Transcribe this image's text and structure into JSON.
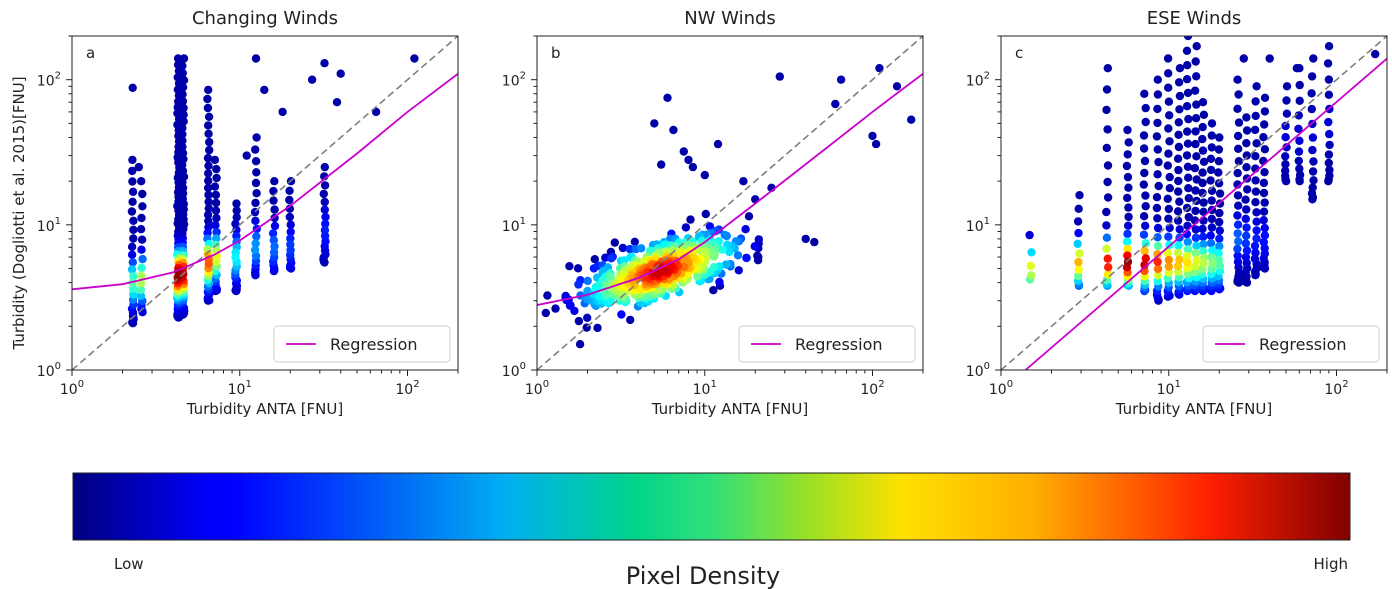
{
  "chart_data": [
    {
      "type": "scatter",
      "panel_letter": "a",
      "title": "Changing Winds",
      "xlabel": "Turbidity ANTA [FNU]",
      "ylabel": "Turbidity (Dogliotti et al. 2015)[FNU]",
      "x_scale": "log",
      "y_scale": "log",
      "xlim": [
        1,
        200
      ],
      "ylim": [
        1,
        200
      ],
      "x_ticks": [
        {
          "base": "10",
          "exp": "0"
        },
        {
          "base": "10",
          "exp": "1"
        },
        {
          "base": "10",
          "exp": "2"
        }
      ],
      "y_ticks": [
        {
          "base": "10",
          "exp": "0"
        },
        {
          "base": "10",
          "exp": "1"
        },
        {
          "base": "10",
          "exp": "2"
        }
      ],
      "legend": {
        "entries": [
          "Regression"
        ],
        "position": "lower-right"
      },
      "identity_line": {
        "style": "dashed",
        "color": "#7f7f7f"
      },
      "regression": {
        "color": "#cc00cc",
        "points": [
          [
            1,
            3.6
          ],
          [
            2,
            3.9
          ],
          [
            4,
            4.7
          ],
          [
            7,
            6.2
          ],
          [
            10,
            7.8
          ],
          [
            20,
            13.5
          ],
          [
            50,
            31
          ],
          [
            100,
            60
          ],
          [
            200,
            110
          ]
        ]
      },
      "clusters": [
        {
          "x": 2.3,
          "y_min": 2.1,
          "y_max": 28,
          "peak": 4.0,
          "density": 0.45,
          "n": 26
        },
        {
          "x": 2.6,
          "y_min": 2.5,
          "y_max": 20,
          "peak": 4.2,
          "density": 0.55,
          "n": 18
        },
        {
          "x": 4.3,
          "y_min": 2.3,
          "y_max": 140,
          "peak": 4.5,
          "density": 1.0,
          "n": 70
        },
        {
          "x": 4.6,
          "y_min": 2.4,
          "y_max": 140,
          "peak": 4.6,
          "density": 0.95,
          "n": 60
        },
        {
          "x": 6.5,
          "y_min": 3.0,
          "y_max": 85,
          "peak": 5.5,
          "density": 0.8,
          "n": 40
        },
        {
          "x": 7.2,
          "y_min": 3.5,
          "y_max": 28,
          "peak": 6.0,
          "density": 0.6,
          "n": 25
        },
        {
          "x": 9.5,
          "y_min": 3.5,
          "y_max": 14,
          "peak": 6.0,
          "density": 0.35,
          "n": 22
        },
        {
          "x": 12.5,
          "y_min": 4.5,
          "y_max": 40,
          "peak": 7.0,
          "density": 0.25,
          "n": 20
        },
        {
          "x": 16,
          "y_min": 4.8,
          "y_max": 20,
          "peak": 7.0,
          "density": 0.2,
          "n": 16
        },
        {
          "x": 20,
          "y_min": 5.0,
          "y_max": 20,
          "peak": 7.0,
          "density": 0.15,
          "n": 16
        },
        {
          "x": 32,
          "y_min": 5.5,
          "y_max": 25,
          "peak": 9.0,
          "density": 0.12,
          "n": 18
        }
      ],
      "outliers": [
        [
          2.3,
          88
        ],
        [
          2.5,
          25
        ],
        [
          12.5,
          140
        ],
        [
          14,
          85
        ],
        [
          27,
          100
        ],
        [
          32,
          130
        ],
        [
          38,
          70
        ],
        [
          40,
          110
        ],
        [
          65,
          60
        ],
        [
          110,
          140
        ],
        [
          11,
          30
        ],
        [
          18,
          60
        ]
      ]
    },
    {
      "type": "scatter",
      "panel_letter": "b",
      "title": "NW Winds",
      "xlabel": "Turbidity ANTA [FNU]",
      "x_scale": "log",
      "y_scale": "log",
      "xlim": [
        1,
        200
      ],
      "ylim": [
        1,
        200
      ],
      "x_ticks": [
        {
          "base": "10",
          "exp": "0"
        },
        {
          "base": "10",
          "exp": "1"
        },
        {
          "base": "10",
          "exp": "2"
        }
      ],
      "y_ticks": [
        {
          "base": "10",
          "exp": "0"
        },
        {
          "base": "10",
          "exp": "1"
        },
        {
          "base": "10",
          "exp": "2"
        }
      ],
      "legend": {
        "entries": [
          "Regression"
        ],
        "position": "lower-right"
      },
      "identity_line": {
        "style": "dashed",
        "color": "#7f7f7f"
      },
      "regression": {
        "color": "#cc00cc",
        "points": [
          [
            1,
            2.8
          ],
          [
            2,
            3.3
          ],
          [
            4,
            4.3
          ],
          [
            7,
            5.8
          ],
          [
            10,
            7.6
          ],
          [
            20,
            14
          ],
          [
            50,
            32
          ],
          [
            100,
            60
          ],
          [
            200,
            110
          ]
        ]
      },
      "blob": {
        "center_x": 5.5,
        "center_y": 4.8,
        "spread": 0.19,
        "n": 420
      },
      "outliers": [
        [
          5,
          50
        ],
        [
          6,
          75
        ],
        [
          6.5,
          45
        ],
        [
          7.5,
          32
        ],
        [
          5.5,
          26
        ],
        [
          8,
          28
        ],
        [
          8.5,
          25
        ],
        [
          10,
          22
        ],
        [
          12,
          36
        ],
        [
          17,
          20
        ],
        [
          20,
          15
        ],
        [
          25,
          18
        ],
        [
          28,
          105
        ],
        [
          40,
          8
        ],
        [
          45,
          7.6
        ],
        [
          60,
          68
        ],
        [
          65,
          100
        ],
        [
          100,
          41
        ],
        [
          105,
          36
        ],
        [
          110,
          120
        ],
        [
          140,
          90
        ],
        [
          170,
          53
        ]
      ]
    },
    {
      "type": "scatter",
      "panel_letter": "c",
      "title": "ESE Winds",
      "xlabel": "Turbidity ANTA [FNU]",
      "x_scale": "log",
      "y_scale": "log",
      "xlim": [
        1,
        200
      ],
      "ylim": [
        1,
        200
      ],
      "x_ticks": [
        {
          "base": "10",
          "exp": "0"
        },
        {
          "base": "10",
          "exp": "1"
        },
        {
          "base": "10",
          "exp": "2"
        }
      ],
      "y_ticks": [
        {
          "base": "10",
          "exp": "0"
        },
        {
          "base": "10",
          "exp": "1"
        },
        {
          "base": "10",
          "exp": "2"
        }
      ],
      "legend": {
        "entries": [
          "Regression"
        ],
        "position": "lower-right"
      },
      "identity_line": {
        "style": "dashed",
        "color": "#7f7f7f"
      },
      "regression": {
        "color": "#cc00cc",
        "points": [
          [
            1.4,
            1.0
          ],
          [
            200,
            140
          ]
        ]
      },
      "clusters": [
        {
          "x": 1.5,
          "y_min": 4.2,
          "y_max": 8.5,
          "peak": 5.0,
          "density": 0.6,
          "n": 5
        },
        {
          "x": 2.9,
          "y_min": 3.8,
          "y_max": 16,
          "peak": 5.5,
          "density": 0.7,
          "n": 12
        },
        {
          "x": 4.3,
          "y_min": 3.8,
          "y_max": 120,
          "peak": 5.5,
          "density": 0.9,
          "n": 18
        },
        {
          "x": 5.7,
          "y_min": 3.8,
          "y_max": 45,
          "peak": 5.5,
          "density": 1.0,
          "n": 22
        },
        {
          "x": 7.2,
          "y_min": 3.5,
          "y_max": 80,
          "peak": 5.5,
          "density": 0.95,
          "n": 24
        },
        {
          "x": 8.6,
          "y_min": 3.0,
          "y_max": 100,
          "peak": 5.5,
          "density": 0.85,
          "n": 26
        },
        {
          "x": 10,
          "y_min": 3.2,
          "y_max": 140,
          "peak": 5.5,
          "density": 0.75,
          "n": 28
        },
        {
          "x": 11.5,
          "y_min": 3.3,
          "y_max": 120,
          "peak": 5.5,
          "density": 0.7,
          "n": 28
        },
        {
          "x": 13,
          "y_min": 3.5,
          "y_max": 200,
          "peak": 5.5,
          "density": 0.65,
          "n": 30
        },
        {
          "x": 14.5,
          "y_min": 3.5,
          "y_max": 170,
          "peak": 5.5,
          "density": 0.6,
          "n": 28
        },
        {
          "x": 16,
          "y_min": 3.5,
          "y_max": 70,
          "peak": 5.5,
          "density": 0.55,
          "n": 26
        },
        {
          "x": 18,
          "y_min": 3.5,
          "y_max": 50,
          "peak": 5.5,
          "density": 0.5,
          "n": 24
        },
        {
          "x": 20,
          "y_min": 3.6,
          "y_max": 40,
          "peak": 5.5,
          "density": 0.45,
          "n": 22
        },
        {
          "x": 26,
          "y_min": 4.0,
          "y_max": 100,
          "peak": 8.0,
          "density": 0.2,
          "n": 24
        },
        {
          "x": 29,
          "y_min": 4.0,
          "y_max": 55,
          "peak": 8.0,
          "density": 0.15,
          "n": 22
        },
        {
          "x": 33,
          "y_min": 4.5,
          "y_max": 90,
          "peak": 8.0,
          "density": 0.12,
          "n": 22
        },
        {
          "x": 37,
          "y_min": 5.0,
          "y_max": 75,
          "peak": 8.0,
          "density": 0.1,
          "n": 22
        },
        {
          "x": 50,
          "y_min": 20,
          "y_max": 90,
          "peak": 40,
          "density": 0.05,
          "n": 12
        },
        {
          "x": 60,
          "y_min": 20,
          "y_max": 120,
          "peak": 40,
          "density": 0.05,
          "n": 12
        },
        {
          "x": 72,
          "y_min": 15,
          "y_max": 140,
          "peak": 40,
          "density": 0.05,
          "n": 14
        },
        {
          "x": 90,
          "y_min": 20,
          "y_max": 170,
          "peak": 50,
          "density": 0.05,
          "n": 14
        }
      ],
      "outliers": [
        [
          28,
          140
        ],
        [
          40,
          140
        ],
        [
          58,
          120
        ],
        [
          170,
          150
        ]
      ]
    }
  ],
  "colorbar": {
    "colormap": "jet",
    "title": "Pixel Density",
    "low_label": "Low",
    "high_label": "High"
  },
  "colors": {
    "identity_line": "#7f7f7f",
    "regression": "#cc00cc",
    "axis": "#222222"
  }
}
